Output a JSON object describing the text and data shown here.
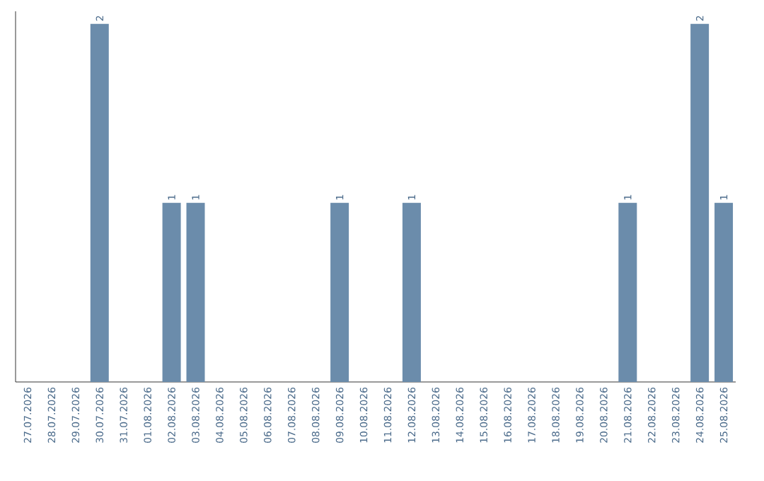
{
  "chart_data": {
    "type": "bar",
    "categories": [
      "27.07.2026",
      "28.07.2026",
      "29.07.2026",
      "30.07.2026",
      "31.07.2026",
      "01.08.2026",
      "02.08.2026",
      "03.08.2026",
      "04.08.2026",
      "05.08.2026",
      "06.08.2026",
      "07.08.2026",
      "08.08.2026",
      "09.08.2026",
      "10.08.2026",
      "11.08.2026",
      "12.08.2026",
      "13.08.2026",
      "14.08.2026",
      "15.08.2026",
      "16.08.2026",
      "17.08.2026",
      "18.08.2026",
      "19.08.2026",
      "20.08.2026",
      "21.08.2026",
      "22.08.2026",
      "23.08.2026",
      "24.08.2026",
      "25.08.2026"
    ],
    "values": [
      0,
      0,
      0,
      2,
      0,
      0,
      1,
      1,
      0,
      0,
      0,
      0,
      0,
      1,
      0,
      0,
      1,
      0,
      0,
      0,
      0,
      0,
      0,
      0,
      0,
      1,
      0,
      0,
      2,
      1
    ],
    "value_labels": [
      null,
      null,
      null,
      "2",
      null,
      null,
      "1",
      "1",
      null,
      null,
      null,
      null,
      null,
      "1",
      null,
      null,
      "1",
      null,
      null,
      null,
      null,
      null,
      null,
      null,
      null,
      "1",
      null,
      null,
      "2",
      "1"
    ],
    "color": "#6b8cab",
    "grid": false
  }
}
